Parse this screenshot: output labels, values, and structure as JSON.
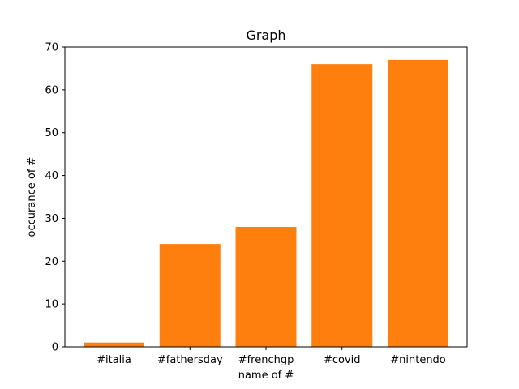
{
  "chart_data": {
    "type": "bar",
    "title": "Graph",
    "xlabel": "name of #",
    "ylabel": "occurance of #",
    "categories": [
      "#italia",
      "#fathersday",
      "#frenchgp",
      "#covid",
      "#nintendo"
    ],
    "values": [
      1,
      24,
      28,
      66,
      67
    ],
    "ylim": [
      0,
      70
    ],
    "yticks": [
      0,
      10,
      20,
      30,
      40,
      50,
      60,
      70
    ],
    "grid": false,
    "legend": false,
    "colors": {
      "bar": "#ff7f0e",
      "axis": "#000000",
      "background": "#ffffff"
    }
  }
}
